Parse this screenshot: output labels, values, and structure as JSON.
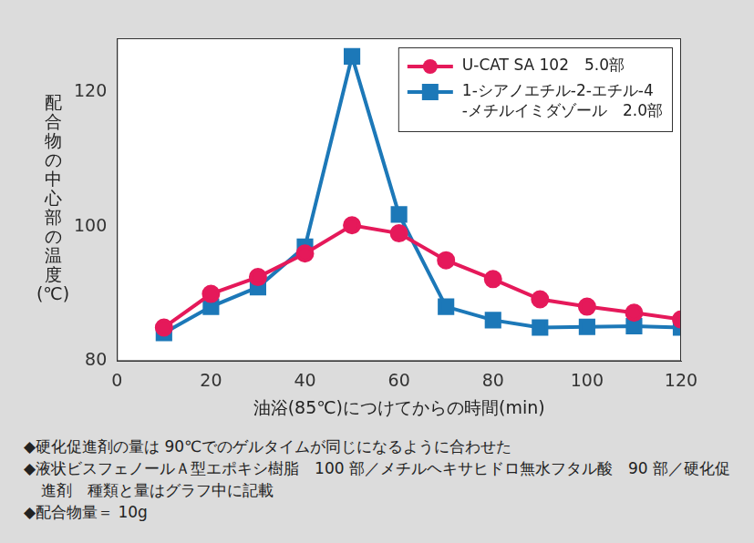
{
  "chart_data": {
    "type": "line",
    "x_label": "油浴(85℃)につけてからの時間(min)",
    "y_label": "配合物の中心部の温度(℃)",
    "x": [
      10,
      20,
      30,
      40,
      50,
      60,
      70,
      80,
      90,
      100,
      110,
      120
    ],
    "series": [
      {
        "name": "U-CAT SA 102　5.0部",
        "color": "#e5195a",
        "marker": "circle",
        "values": [
          85.0,
          90.0,
          92.5,
          96.0,
          100.2,
          99.0,
          95.0,
          92.2,
          89.2,
          88.1,
          87.2,
          86.2
        ]
      },
      {
        "name": "1-シアノエチル-2-エチル-4\n-メチルイミダゾール　2.0部",
        "color": "#1c78b8",
        "marker": "square",
        "values": [
          84.2,
          88.1,
          91.0,
          97.0,
          125.3,
          101.8,
          88.1,
          86.1,
          85.0,
          85.1,
          85.2,
          85.0
        ]
      }
    ],
    "xlim": [
      0,
      120
    ],
    "xticks": [
      0,
      20,
      40,
      60,
      80,
      100,
      120
    ],
    "ylim": [
      80,
      128
    ],
    "yticks": [
      80,
      100,
      120
    ],
    "grid": false,
    "legend": "top-right"
  },
  "notes": [
    "◆硬化促進剤の量は 90℃でのゲルタイムが同じになるように合わせた",
    "◆液状ビスフェノールＡ型エポキシ樹脂　100 部／メチルヘキサヒドロ無水フタル酸　90 部／硬化促進剤　種類と量はグラフ中に記載",
    "◆配合物量＝ 10g"
  ]
}
